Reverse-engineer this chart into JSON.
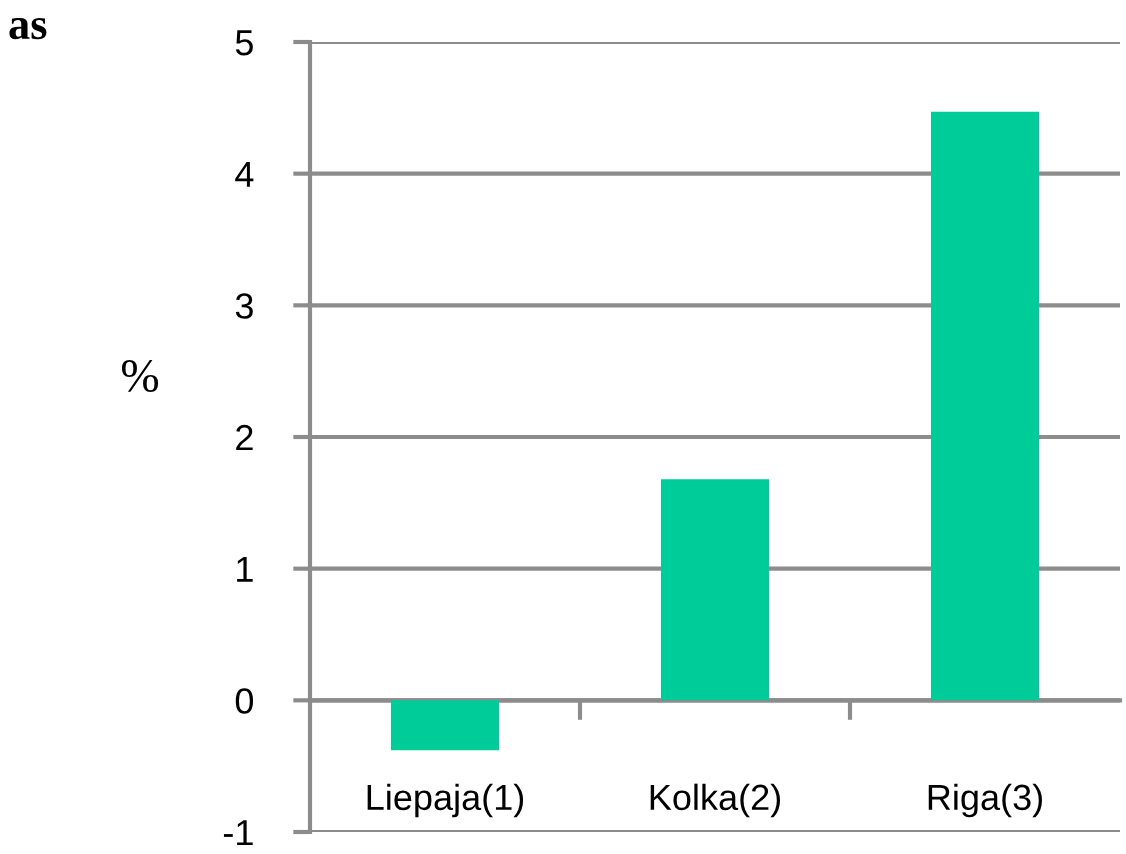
{
  "chart_data": {
    "type": "bar",
    "ylabel": "%",
    "annotations": [
      "as"
    ],
    "categories": [
      "Liepaja(1)",
      "Kolka(2)",
      "Riga(3)"
    ],
    "values": [
      -0.38,
      1.68,
      4.47
    ],
    "color": "#00cc99",
    "ylim": [
      -1,
      5
    ],
    "yticks": [
      -1,
      0,
      1,
      2,
      3,
      4,
      5
    ],
    "grid": "y",
    "legend": false
  }
}
